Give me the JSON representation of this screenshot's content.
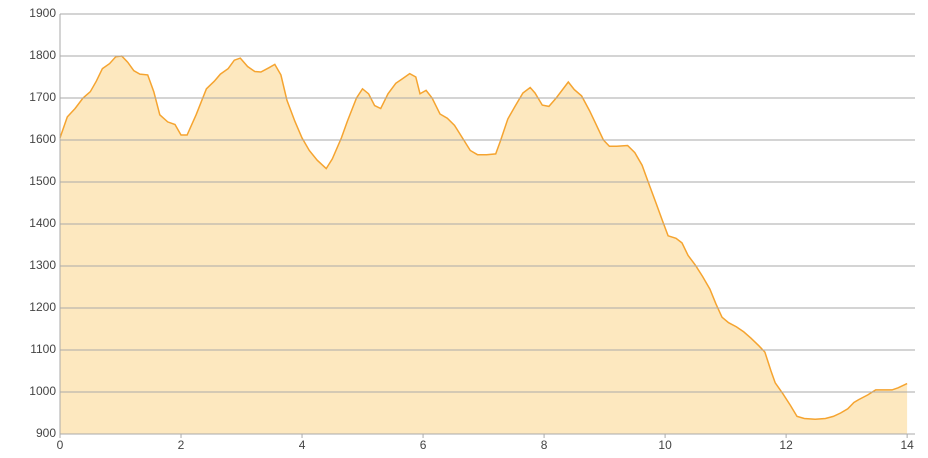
{
  "chart_data": {
    "type": "area",
    "x": [
      0,
      0.12,
      0.25,
      0.38,
      0.5,
      0.6,
      0.7,
      0.82,
      0.92,
      1.02,
      1.12,
      1.22,
      1.32,
      1.45,
      1.55,
      1.65,
      1.78,
      1.9,
      2.0,
      2.1,
      2.25,
      2.42,
      2.55,
      2.65,
      2.78,
      2.88,
      2.98,
      3.1,
      3.22,
      3.32,
      3.45,
      3.55,
      3.65,
      3.75,
      3.88,
      4.0,
      4.12,
      4.25,
      4.4,
      4.5,
      4.65,
      4.75,
      4.9,
      5.0,
      5.1,
      5.2,
      5.3,
      5.42,
      5.55,
      5.65,
      5.78,
      5.88,
      5.95,
      6.05,
      6.15,
      6.28,
      6.4,
      6.52,
      6.65,
      6.78,
      6.9,
      7.05,
      7.2,
      7.28,
      7.4,
      7.52,
      7.65,
      7.77,
      7.85,
      7.97,
      8.08,
      8.2,
      8.4,
      8.5,
      8.62,
      8.75,
      8.85,
      8.98,
      9.08,
      9.2,
      9.38,
      9.5,
      9.62,
      9.72,
      9.85,
      9.95,
      10.05,
      10.18,
      10.28,
      10.38,
      10.5,
      10.62,
      10.74,
      10.84,
      10.94,
      11.05,
      11.18,
      11.3,
      11.42,
      11.55,
      11.65,
      11.75,
      11.82,
      11.95,
      12.07,
      12.18,
      12.3,
      12.48,
      12.65,
      12.78,
      12.9,
      13.02,
      13.12,
      13.2,
      13.35,
      13.48,
      13.62,
      13.75,
      13.85,
      14.0
    ],
    "values": [
      1605,
      1655,
      1675,
      1700,
      1715,
      1740,
      1770,
      1782,
      1798,
      1800,
      1785,
      1765,
      1757,
      1755,
      1715,
      1660,
      1643,
      1637,
      1612,
      1612,
      1660,
      1722,
      1740,
      1757,
      1770,
      1790,
      1795,
      1775,
      1763,
      1762,
      1772,
      1780,
      1755,
      1695,
      1645,
      1605,
      1575,
      1552,
      1532,
      1555,
      1605,
      1645,
      1700,
      1722,
      1710,
      1682,
      1675,
      1710,
      1735,
      1745,
      1758,
      1750,
      1710,
      1718,
      1700,
      1662,
      1652,
      1635,
      1605,
      1575,
      1565,
      1565,
      1567,
      1598,
      1650,
      1680,
      1712,
      1725,
      1712,
      1683,
      1680,
      1700,
      1738,
      1720,
      1705,
      1670,
      1640,
      1600,
      1585,
      1585,
      1587,
      1570,
      1540,
      1500,
      1450,
      1410,
      1372,
      1366,
      1355,
      1325,
      1302,
      1275,
      1245,
      1210,
      1178,
      1165,
      1155,
      1143,
      1128,
      1110,
      1095,
      1050,
      1022,
      995,
      968,
      942,
      937,
      935,
      937,
      942,
      950,
      960,
      975,
      982,
      993,
      1005,
      1005,
      1005,
      1010,
      1020
    ],
    "color": "#f5a430",
    "fill": "#fde8bf",
    "xlim": [
      0,
      14.13
    ],
    "xticks": [
      0,
      2,
      4,
      6,
      8,
      10,
      12,
      14
    ],
    "ylim": [
      900,
      1900
    ],
    "yticks": [
      900,
      1000,
      1100,
      1200,
      1300,
      1400,
      1500,
      1600,
      1700,
      1800,
      1900
    ],
    "grid": true
  }
}
